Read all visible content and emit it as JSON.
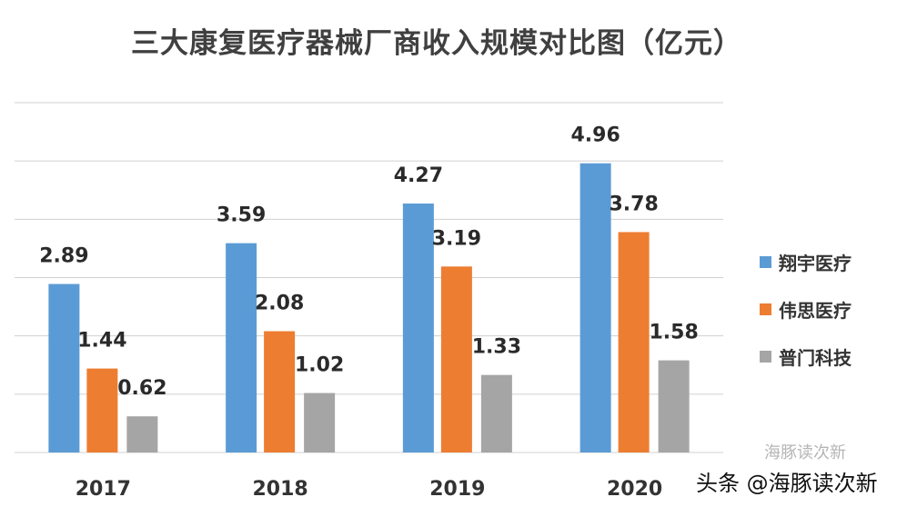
{
  "chart_data": {
    "type": "bar",
    "title": "三大康复医疗器械厂商收入规模对比图（亿元）",
    "categories": [
      "2017",
      "2018",
      "2019",
      "2020"
    ],
    "series": [
      {
        "name": "翔宇医疗",
        "color": "#5b9bd5",
        "values": [
          2.89,
          3.59,
          4.27,
          4.96
        ]
      },
      {
        "name": "伟思医疗",
        "color": "#ed7d31",
        "values": [
          1.44,
          2.08,
          3.19,
          3.78
        ]
      },
      {
        "name": "普门科技",
        "color": "#a5a5a5",
        "values": [
          0.62,
          1.02,
          1.33,
          1.58
        ]
      }
    ],
    "ylim": [
      0,
      6
    ],
    "grid": true,
    "y_axis_labels_shown": false,
    "legend": "right",
    "xlabel": "",
    "ylabel": ""
  },
  "watermark": "头条 @海豚读次新",
  "watermark_faint": "海豚读次新"
}
